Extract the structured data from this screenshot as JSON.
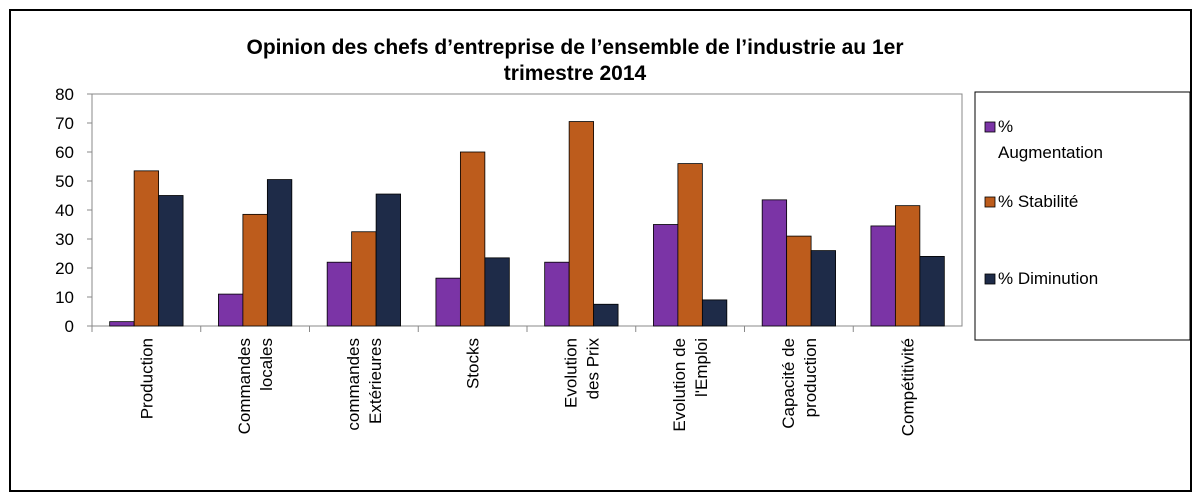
{
  "chart_data": {
    "type": "bar",
    "title": "Opinion des chefs d’entreprise de l’ensemble de l’industrie au 1er\ntrimestre 2014",
    "categories": [
      "Production",
      "Commandes\nlocales",
      "commandes\nExtérieures",
      "Stocks",
      "Evolution\ndes Prix",
      "Evolution de\nl'Emploi",
      "Capacité de\nproduction",
      "Compétitivité"
    ],
    "series": [
      {
        "name": "%\nAugmentation",
        "color": "#7b34a6",
        "values": [
          1.5,
          11,
          22,
          16.5,
          22,
          35,
          43.5,
          34.5
        ]
      },
      {
        "name": "% Stabilité",
        "color": "#bd5c1c",
        "values": [
          53.5,
          38.5,
          32.5,
          60,
          70.5,
          56,
          31,
          41.5
        ]
      },
      {
        "name": "% Diminution",
        "color": "#1e2b48",
        "values": [
          45,
          50.5,
          45.5,
          23.5,
          7.5,
          9,
          26,
          24
        ]
      }
    ],
    "ylim": [
      0,
      80
    ],
    "yticks": [
      0,
      10,
      20,
      30,
      40,
      50,
      60,
      70,
      80
    ],
    "grid": false,
    "legend": "right"
  }
}
